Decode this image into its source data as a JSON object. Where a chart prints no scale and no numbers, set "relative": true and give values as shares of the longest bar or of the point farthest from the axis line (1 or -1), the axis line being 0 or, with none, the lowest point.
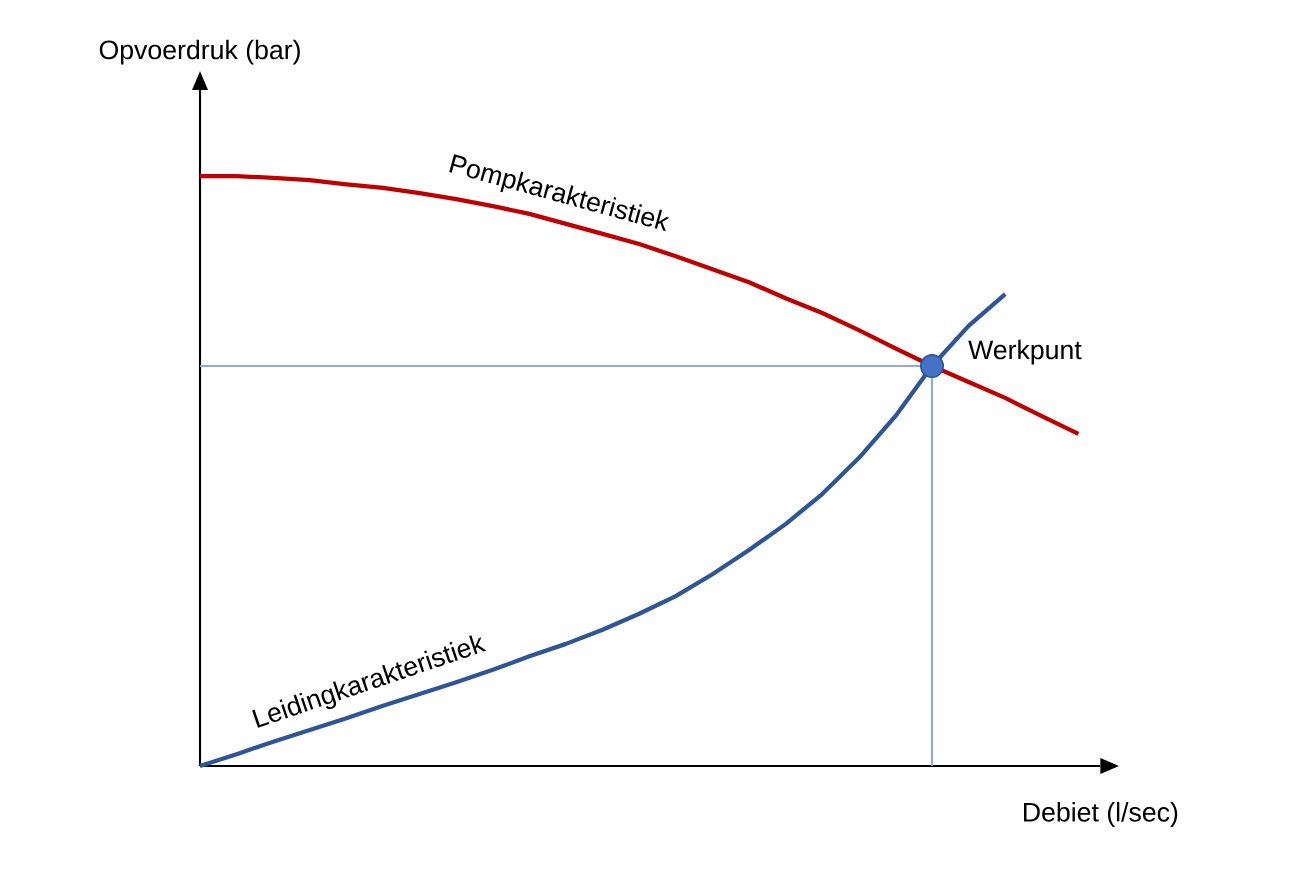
{
  "chart_data": {
    "type": "line",
    "relative": true,
    "xlabel": "Debiet (l/sec)",
    "ylabel": "Opvoerdruk (bar)",
    "categories": [
      null,
      null,
      null,
      null,
      null,
      null,
      null,
      null,
      null,
      null,
      null,
      null,
      null,
      null,
      null,
      null,
      null,
      null,
      null,
      null,
      null,
      null,
      null,
      null,
      null
    ],
    "series": [
      {
        "name": "Pompkarakteristiek",
        "color": "#c00000",
        "values": [
          1.0,
          1.0,
          0.997,
          0.993,
          0.986,
          0.98,
          0.971,
          0.961,
          0.949,
          0.936,
          0.919,
          0.902,
          0.885,
          0.864,
          0.842,
          0.82,
          0.793,
          0.768,
          0.739,
          0.708,
          0.678,
          0.651,
          0.624,
          0.593,
          0.563
        ]
      },
      {
        "name": "Leidingkarakteristiek",
        "color": "#2f5597",
        "values": [
          0,
          0.02,
          0.041,
          0.061,
          0.081,
          0.102,
          0.122,
          0.142,
          0.163,
          0.186,
          0.207,
          0.231,
          0.258,
          0.288,
          0.325,
          0.366,
          0.41,
          0.461,
          0.522,
          0.593,
          0.678,
          0.746,
          0.8,
          null,
          null
        ]
      }
    ],
    "ref_lines": [
      {
        "axis": "y",
        "value": 0.678,
        "color": "#8faadc",
        "label": "Werkpunt"
      }
    ]
  }
}
